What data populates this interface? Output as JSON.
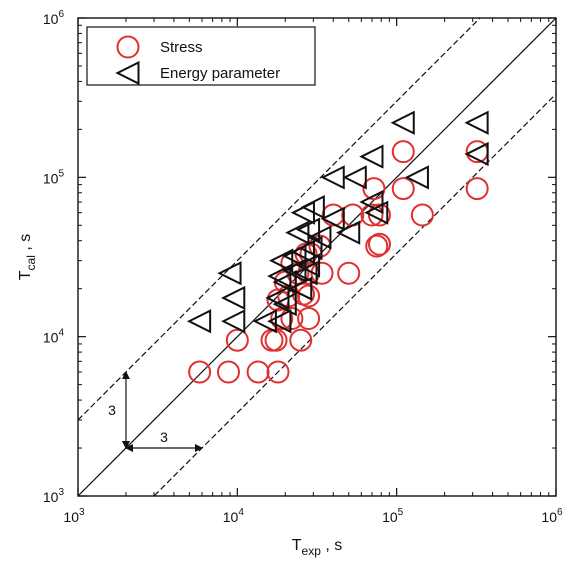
{
  "chart_data": {
    "type": "scatter",
    "x_scale": "log",
    "y_scale": "log",
    "xlim": [
      1000,
      1000000
    ],
    "ylim": [
      1000,
      1000000
    ],
    "x_ticks": [
      {
        "base": "10",
        "exp": "3",
        "value": 1000
      },
      {
        "base": "10",
        "exp": "4",
        "value": 10000
      },
      {
        "base": "10",
        "exp": "5",
        "value": 100000
      },
      {
        "base": "10",
        "exp": "6",
        "value": 1000000
      }
    ],
    "y_ticks": [
      {
        "base": "10",
        "exp": "3",
        "value": 1000
      },
      {
        "base": "10",
        "exp": "4",
        "value": 10000
      },
      {
        "base": "10",
        "exp": "5",
        "value": 100000
      },
      {
        "base": "10",
        "exp": "6",
        "value": 1000000
      }
    ],
    "xlabel": {
      "main": "T",
      "sub": "exp",
      "unit": " , s"
    },
    "ylabel": {
      "main": "T",
      "sub": "cal",
      "unit": " , s"
    },
    "legend_position": "top-left",
    "grid": false,
    "reference_lines": [
      {
        "type": "y=x",
        "style": "solid",
        "factor": 1
      },
      {
        "type": "y=3x",
        "style": "dashed",
        "factor": 3
      },
      {
        "type": "y=x/3",
        "style": "dashed",
        "factor": 0.3333
      }
    ],
    "annotations": [
      {
        "text": "3",
        "direction": "vertical",
        "x": 2000,
        "from": 2000,
        "to": 6000
      },
      {
        "text": "3",
        "direction": "horizontal",
        "y": 2000,
        "from": 2000,
        "to": 6000
      }
    ],
    "series": [
      {
        "name": "Stress",
        "marker": "circle",
        "color": "#e03030",
        "points": [
          [
            5800,
            6000
          ],
          [
            8800,
            6000
          ],
          [
            13500,
            6000
          ],
          [
            18000,
            6000
          ],
          [
            10000,
            9500
          ],
          [
            16500,
            9500
          ],
          [
            17500,
            9500
          ],
          [
            25000,
            9500
          ],
          [
            19000,
            13000
          ],
          [
            22000,
            13000
          ],
          [
            28000,
            13000
          ],
          [
            18000,
            17000
          ],
          [
            21000,
            18000
          ],
          [
            26000,
            18500
          ],
          [
            28000,
            18000
          ],
          [
            20000,
            22000
          ],
          [
            24000,
            25000
          ],
          [
            28000,
            25000
          ],
          [
            34000,
            25000
          ],
          [
            50000,
            25000
          ],
          [
            22000,
            29000
          ],
          [
            29000,
            33000
          ],
          [
            33000,
            37000
          ],
          [
            27000,
            33000
          ],
          [
            75000,
            37000
          ],
          [
            78000,
            38000
          ],
          [
            40000,
            58000
          ],
          [
            53000,
            58000
          ],
          [
            70000,
            58000
          ],
          [
            78000,
            58000
          ],
          [
            145000,
            58000
          ],
          [
            72000,
            85000
          ],
          [
            110000,
            85000
          ],
          [
            320000,
            85000
          ],
          [
            110000,
            145000
          ],
          [
            320000,
            145000
          ]
        ]
      },
      {
        "name": "Energy parameter",
        "marker": "left-triangle",
        "color": "#111111",
        "points": [
          [
            5800,
            12500
          ],
          [
            9500,
            12500
          ],
          [
            15000,
            12500
          ],
          [
            18500,
            12500
          ],
          [
            9500,
            17500
          ],
          [
            18000,
            17500
          ],
          [
            20000,
            16000
          ],
          [
            9000,
            25000
          ],
          [
            18500,
            24000
          ],
          [
            23000,
            26000
          ],
          [
            27000,
            25000
          ],
          [
            19000,
            30000
          ],
          [
            23000,
            32000
          ],
          [
            26000,
            34000
          ],
          [
            29000,
            36000
          ],
          [
            20000,
            22000
          ],
          [
            25000,
            20000
          ],
          [
            28000,
            28000
          ],
          [
            24000,
            45000
          ],
          [
            28000,
            47000
          ],
          [
            33000,
            42000
          ],
          [
            50000,
            45000
          ],
          [
            26000,
            60000
          ],
          [
            30000,
            65000
          ],
          [
            40000,
            55000
          ],
          [
            75000,
            60000
          ],
          [
            70000,
            70000
          ],
          [
            40000,
            100000
          ],
          [
            55000,
            100000
          ],
          [
            70000,
            135000
          ],
          [
            135000,
            100000
          ],
          [
            110000,
            220000
          ],
          [
            320000,
            220000
          ],
          [
            320000,
            140000
          ]
        ]
      }
    ]
  }
}
